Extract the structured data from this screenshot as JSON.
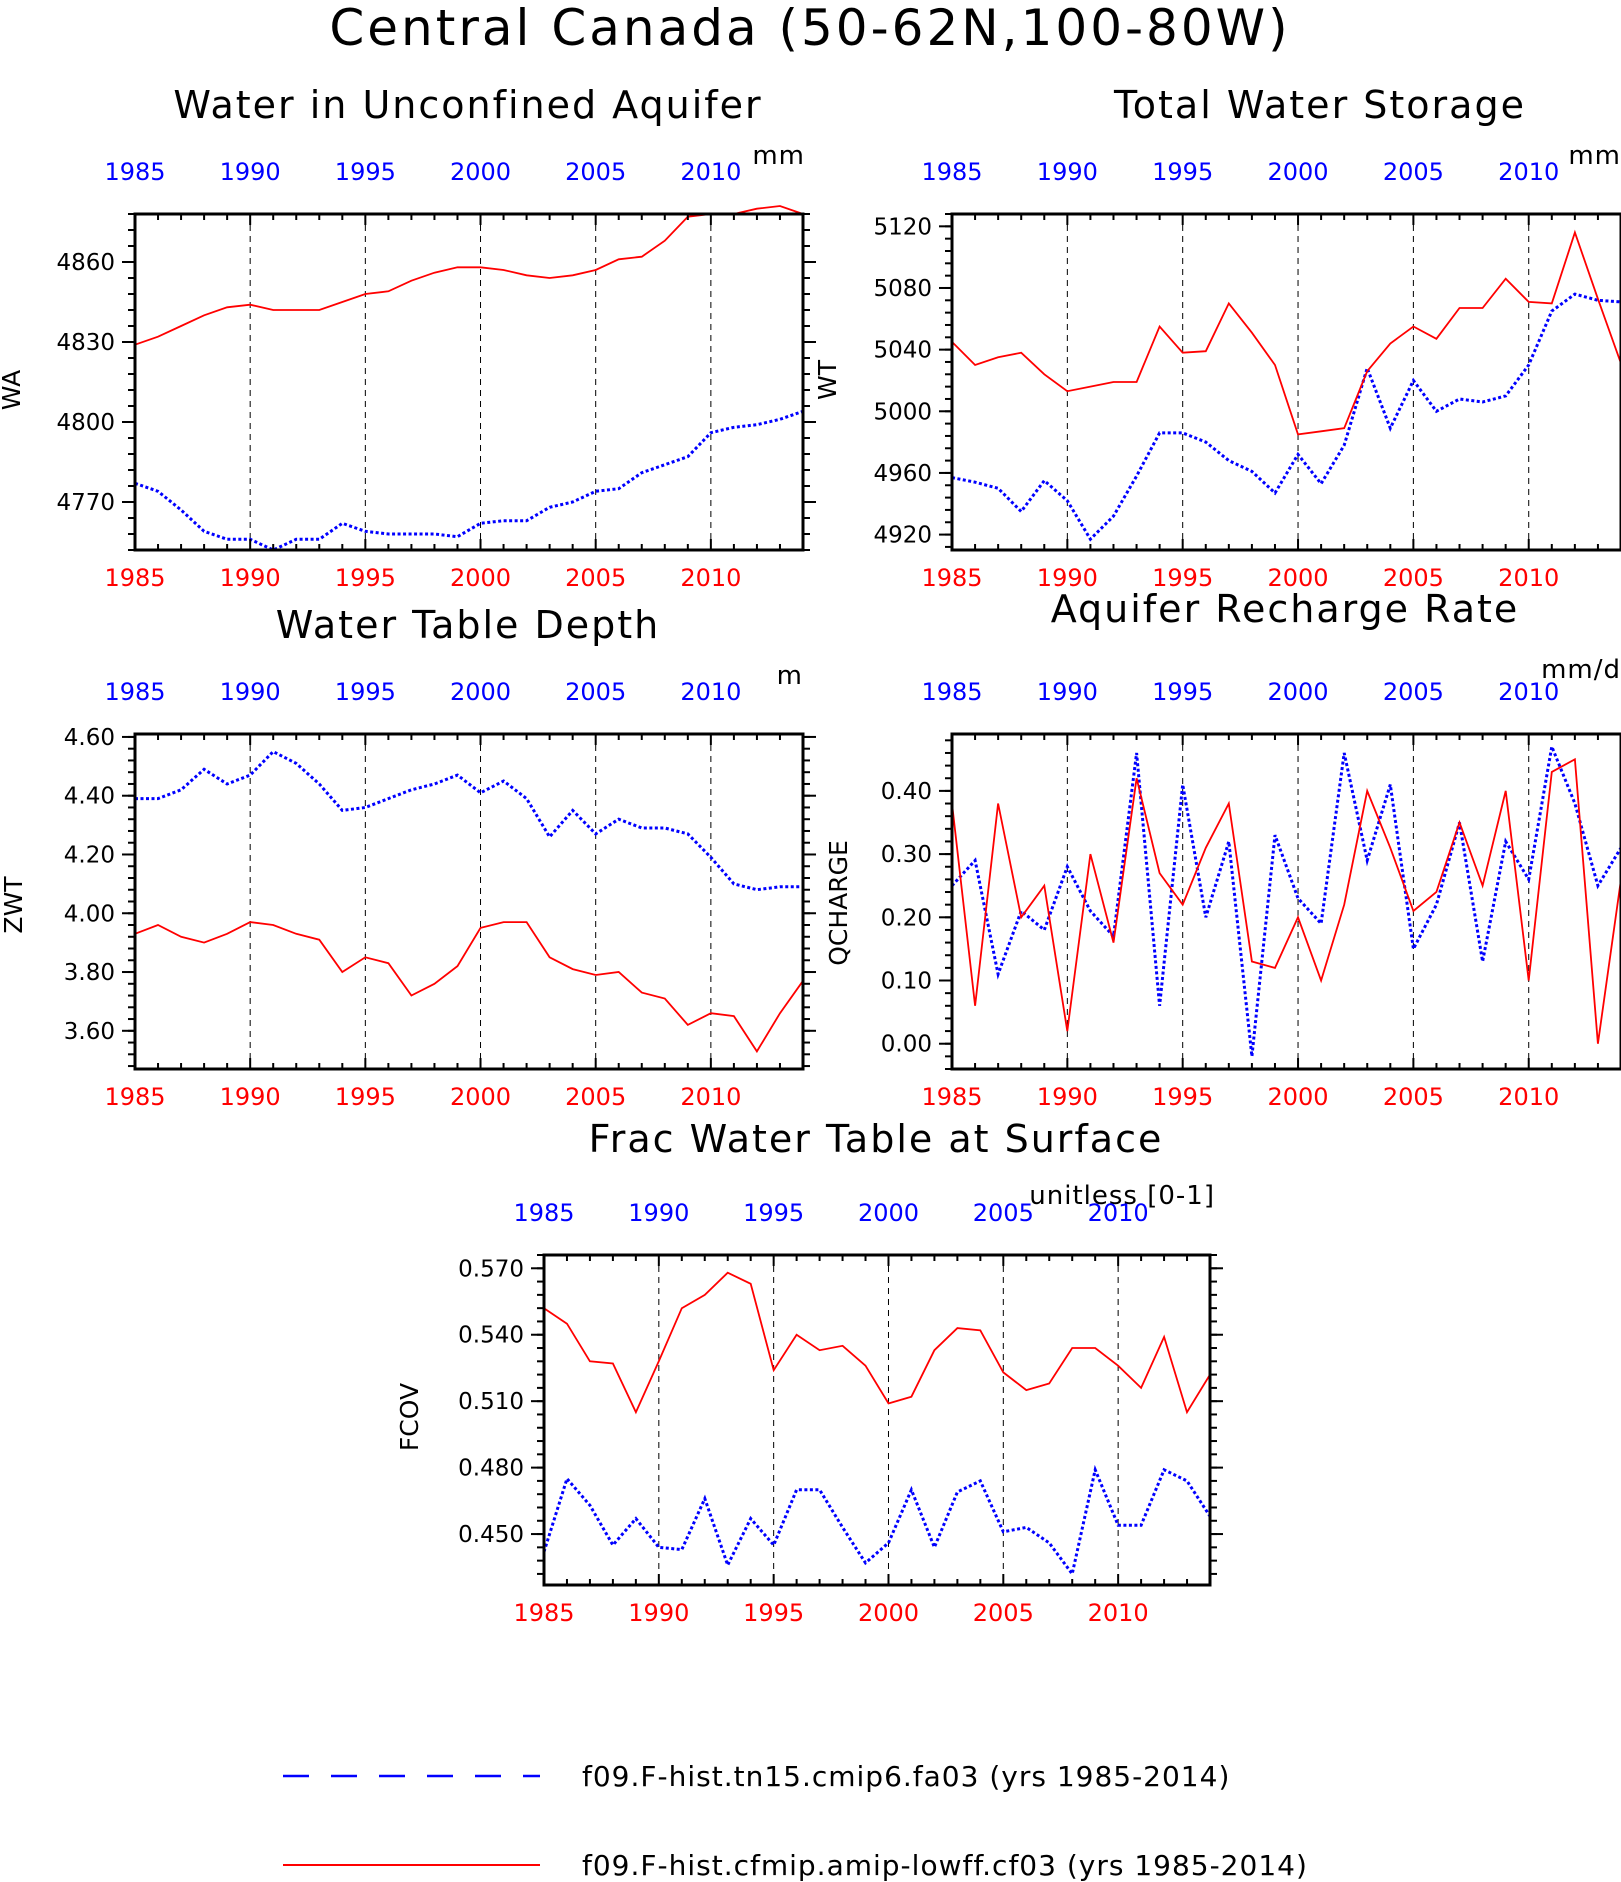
{
  "figure_title": "Central Canada (50-62N,100-80W)",
  "colors": {
    "series_a": "#0000ff",
    "series_b": "#ff0000",
    "axis": "#000000"
  },
  "legend": [
    {
      "label": "f09.F-hist.tn15.cmip6.fa03 (yrs 1985-2014)",
      "color": "#0000ff",
      "style": "dashed"
    },
    {
      "label": "f09.F-hist.cfmip.amip-lowff.cf03 (yrs 1985-2014)",
      "color": "#ff0000",
      "style": "solid"
    }
  ],
  "chart_data": [
    {
      "type": "line",
      "title": "Water in Unconfined Aquifer",
      "ylabel": "WA",
      "units": "mm",
      "xlim": [
        1985,
        2014
      ],
      "ylim": [
        4752,
        4878
      ],
      "xticks": [
        1985,
        1990,
        1995,
        2000,
        2005,
        2010
      ],
      "yticks": [
        4770,
        4800,
        4830,
        4860
      ],
      "ytick_labels": [
        "4770",
        "4800",
        "4830",
        "4860"
      ],
      "x": [
        1985,
        1986,
        1987,
        1988,
        1989,
        1990,
        1991,
        1992,
        1993,
        1994,
        1995,
        1996,
        1997,
        1998,
        1999,
        2000,
        2001,
        2002,
        2003,
        2004,
        2005,
        2006,
        2007,
        2008,
        2009,
        2010,
        2011,
        2012,
        2013,
        2014
      ],
      "series": [
        {
          "style": "dashed",
          "color": "#0000ff",
          "values": [
            4777,
            4774,
            4767,
            4759,
            4756,
            4756,
            4752,
            4756,
            4756,
            4762,
            4759,
            4758,
            4758,
            4758,
            4757,
            4762,
            4763,
            4763,
            4768,
            4770,
            4774,
            4775,
            4781,
            4784,
            4787,
            4796,
            4798,
            4799,
            4801,
            4804
          ]
        },
        {
          "style": "solid",
          "color": "#ff0000",
          "values": [
            4829,
            4832,
            4836,
            4840,
            4843,
            4844,
            4842,
            4842,
            4842,
            4845,
            4848,
            4849,
            4853,
            4856,
            4858,
            4858,
            4857,
            4855,
            4854,
            4855,
            4857,
            4861,
            4862,
            4868,
            4877,
            4878,
            4878,
            4880,
            4881,
            4878
          ]
        }
      ]
    },
    {
      "type": "line",
      "title": "Total Water Storage",
      "ylabel": "WT",
      "units": "mm",
      "xlim": [
        1985,
        2014
      ],
      "ylim": [
        4910,
        5128
      ],
      "xticks": [
        1985,
        1990,
        1995,
        2000,
        2005,
        2010
      ],
      "yticks": [
        4920,
        4960,
        5000,
        5040,
        5080,
        5120
      ],
      "ytick_labels": [
        "4920",
        "4960",
        "5000",
        "5040",
        "5080",
        "5120"
      ],
      "x": [
        1985,
        1986,
        1987,
        1988,
        1989,
        1990,
        1991,
        1992,
        1993,
        1994,
        1995,
        1996,
        1997,
        1998,
        1999,
        2000,
        2001,
        2002,
        2003,
        2004,
        2005,
        2006,
        2007,
        2008,
        2009,
        2010,
        2011,
        2012,
        2013,
        2014
      ],
      "series": [
        {
          "style": "dashed",
          "color": "#0000ff",
          "values": [
            4957,
            4954,
            4950,
            4935,
            4955,
            4942,
            4917,
            4932,
            4958,
            4986,
            4986,
            4980,
            4968,
            4961,
            4947,
            4972,
            4953,
            4978,
            5028,
            4989,
            5020,
            5000,
            5008,
            5006,
            5010,
            5030,
            5065,
            5076,
            5072,
            5071
          ]
        },
        {
          "style": "solid",
          "color": "#ff0000",
          "values": [
            5045,
            5030,
            5035,
            5038,
            5024,
            5013,
            5016,
            5019,
            5019,
            5055,
            5038,
            5039,
            5070,
            5051,
            5030,
            4985,
            4987,
            4989,
            5026,
            5044,
            5055,
            5047,
            5067,
            5067,
            5086,
            5071,
            5070,
            5116,
            5073,
            5031
          ]
        }
      ]
    },
    {
      "type": "line",
      "title": "Water Table Depth",
      "ylabel": "ZWT",
      "units": "m",
      "xlim": [
        1985,
        2014
      ],
      "ylim": [
        3.47,
        4.61
      ],
      "xticks": [
        1985,
        1990,
        1995,
        2000,
        2005,
        2010
      ],
      "yticks": [
        3.6,
        3.8,
        4.0,
        4.2,
        4.4,
        4.6
      ],
      "ytick_labels": [
        "3.60",
        "3.80",
        "4.00",
        "4.20",
        "4.40",
        "4.60"
      ],
      "x": [
        1985,
        1986,
        1987,
        1988,
        1989,
        1990,
        1991,
        1992,
        1993,
        1994,
        1995,
        1996,
        1997,
        1998,
        1999,
        2000,
        2001,
        2002,
        2003,
        2004,
        2005,
        2006,
        2007,
        2008,
        2009,
        2010,
        2011,
        2012,
        2013,
        2014
      ],
      "series": [
        {
          "style": "dashed",
          "color": "#0000ff",
          "values": [
            4.39,
            4.39,
            4.42,
            4.49,
            4.44,
            4.47,
            4.55,
            4.51,
            4.44,
            4.35,
            4.36,
            4.39,
            4.42,
            4.44,
            4.47,
            4.41,
            4.45,
            4.39,
            4.26,
            4.35,
            4.27,
            4.32,
            4.29,
            4.29,
            4.27,
            4.19,
            4.1,
            4.08,
            4.09,
            4.09
          ]
        },
        {
          "style": "solid",
          "color": "#ff0000",
          "values": [
            3.93,
            3.96,
            3.92,
            3.9,
            3.93,
            3.97,
            3.96,
            3.93,
            3.91,
            3.8,
            3.85,
            3.83,
            3.72,
            3.76,
            3.82,
            3.95,
            3.97,
            3.97,
            3.85,
            3.81,
            3.79,
            3.8,
            3.73,
            3.71,
            3.62,
            3.66,
            3.65,
            3.53,
            3.66,
            3.77
          ]
        }
      ]
    },
    {
      "type": "line",
      "title": "Aquifer Recharge Rate",
      "ylabel": "QCHARGE",
      "units": "mm/d",
      "xlim": [
        1985,
        2014
      ],
      "ylim": [
        -0.04,
        0.49
      ],
      "xticks": [
        1985,
        1990,
        1995,
        2000,
        2005,
        2010
      ],
      "yticks": [
        0.0,
        0.1,
        0.2,
        0.3,
        0.4
      ],
      "ytick_labels": [
        "0.00",
        "0.10",
        "0.20",
        "0.30",
        "0.40"
      ],
      "x": [
        1985,
        1986,
        1987,
        1988,
        1989,
        1990,
        1991,
        1992,
        1993,
        1994,
        1995,
        1996,
        1997,
        1998,
        1999,
        2000,
        2001,
        2002,
        2003,
        2004,
        2005,
        2006,
        2007,
        2008,
        2009,
        2010,
        2011,
        2012,
        2013,
        2014
      ],
      "series": [
        {
          "style": "dashed",
          "color": "#0000ff",
          "values": [
            0.25,
            0.29,
            0.11,
            0.21,
            0.18,
            0.28,
            0.21,
            0.17,
            0.46,
            0.06,
            0.41,
            0.2,
            0.32,
            -0.02,
            0.33,
            0.23,
            0.19,
            0.46,
            0.29,
            0.41,
            0.15,
            0.22,
            0.35,
            0.13,
            0.32,
            0.26,
            0.47,
            0.38,
            0.25,
            0.31
          ]
        },
        {
          "style": "solid",
          "color": "#ff0000",
          "values": [
            0.38,
            0.06,
            0.38,
            0.2,
            0.25,
            0.02,
            0.3,
            0.16,
            0.42,
            0.27,
            0.22,
            0.31,
            0.38,
            0.13,
            0.12,
            0.2,
            0.1,
            0.22,
            0.4,
            0.31,
            0.21,
            0.24,
            0.35,
            0.25,
            0.4,
            0.1,
            0.43,
            0.45,
            0.0,
            0.26
          ]
        }
      ]
    },
    {
      "type": "line",
      "title": "Frac Water Table at Surface",
      "ylabel": "FCOV",
      "units": "unitless [0-1]",
      "xlim": [
        1985,
        2014
      ],
      "ylim": [
        0.427,
        0.576
      ],
      "xticks": [
        1985,
        1990,
        1995,
        2000,
        2005,
        2010
      ],
      "yticks": [
        0.45,
        0.48,
        0.51,
        0.54,
        0.57
      ],
      "ytick_labels": [
        "0.450",
        "0.480",
        "0.510",
        "0.540",
        "0.570"
      ],
      "x": [
        1985,
        1986,
        1987,
        1988,
        1989,
        1990,
        1991,
        1992,
        1993,
        1994,
        1995,
        1996,
        1997,
        1998,
        1999,
        2000,
        2001,
        2002,
        2003,
        2004,
        2005,
        2006,
        2007,
        2008,
        2009,
        2010,
        2011,
        2012,
        2013,
        2014
      ],
      "series": [
        {
          "style": "dashed",
          "color": "#0000ff",
          "values": [
            0.442,
            0.475,
            0.463,
            0.445,
            0.457,
            0.444,
            0.443,
            0.466,
            0.436,
            0.457,
            0.445,
            0.47,
            0.47,
            0.453,
            0.437,
            0.446,
            0.47,
            0.444,
            0.469,
            0.474,
            0.451,
            0.453,
            0.446,
            0.432,
            0.479,
            0.454,
            0.454,
            0.479,
            0.474,
            0.458
          ]
        },
        {
          "style": "solid",
          "color": "#ff0000",
          "values": [
            0.552,
            0.545,
            0.528,
            0.527,
            0.505,
            0.528,
            0.552,
            0.558,
            0.568,
            0.563,
            0.524,
            0.54,
            0.533,
            0.535,
            0.526,
            0.509,
            0.512,
            0.533,
            0.543,
            0.542,
            0.523,
            0.515,
            0.518,
            0.534,
            0.534,
            0.526,
            0.516,
            0.539,
            0.505,
            0.522
          ]
        }
      ]
    }
  ]
}
